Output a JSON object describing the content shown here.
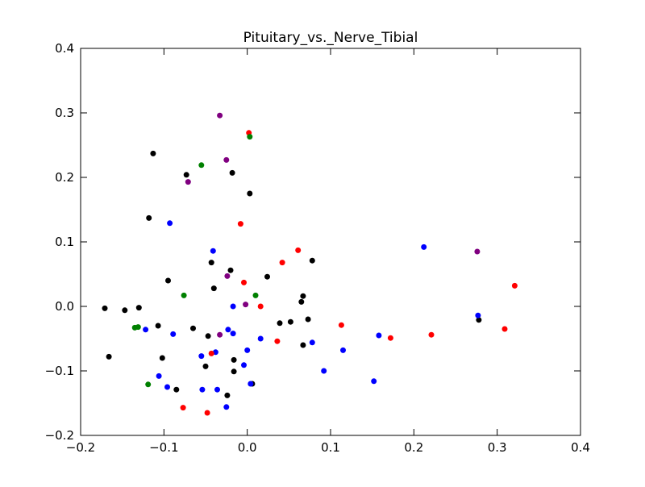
{
  "chart_data": {
    "type": "scatter",
    "title": "Pituitary_vs._Nerve_Tibial",
    "xlabel": "",
    "ylabel": "",
    "xlim": [
      -0.2,
      0.4
    ],
    "ylim": [
      -0.2,
      0.4
    ],
    "xticks": [
      "−0.2",
      "−0.1",
      "0.0",
      "0.1",
      "0.2",
      "0.3",
      "0.4"
    ],
    "xtick_values": [
      -0.2,
      -0.1,
      0.0,
      0.1,
      0.2,
      0.3,
      0.4
    ],
    "yticks": [
      "−0.2",
      "−0.1",
      "0.0",
      "0.1",
      "0.2",
      "0.3",
      "0.4"
    ],
    "ytick_values": [
      -0.2,
      -0.1,
      0.0,
      0.1,
      0.2,
      0.3,
      0.4
    ],
    "grid": false,
    "series": [
      {
        "color": "#000000",
        "x": [
          -0.171,
          -0.166,
          -0.147,
          -0.13,
          -0.118,
          -0.113,
          -0.107,
          -0.102,
          -0.095,
          -0.085,
          -0.073,
          -0.065,
          -0.05,
          -0.047,
          -0.043,
          -0.04,
          -0.024,
          -0.02,
          -0.018,
          -0.016,
          -0.016,
          0.003,
          0.006,
          0.024,
          0.039,
          0.052,
          0.065,
          0.067,
          0.067,
          0.073,
          0.078,
          0.278
        ],
        "y": [
          -0.003,
          -0.078,
          -0.006,
          -0.002,
          0.137,
          0.237,
          -0.03,
          -0.08,
          0.04,
          -0.129,
          0.204,
          -0.034,
          -0.093,
          -0.046,
          0.068,
          0.028,
          -0.138,
          0.056,
          0.207,
          -0.083,
          -0.101,
          0.175,
          -0.12,
          0.046,
          -0.026,
          -0.024,
          0.007,
          0.016,
          -0.06,
          -0.02,
          0.071,
          -0.021
        ]
      },
      {
        "color": "#0000ff",
        "x": [
          -0.122,
          -0.106,
          -0.096,
          -0.093,
          -0.089,
          -0.055,
          -0.054,
          -0.041,
          -0.038,
          -0.036,
          -0.025,
          -0.023,
          -0.017,
          -0.017,
          -0.004,
          0.0,
          0.004,
          0.016,
          0.078,
          0.092,
          0.115,
          0.152,
          0.158,
          0.212,
          0.277
        ],
        "y": [
          -0.036,
          -0.108,
          -0.125,
          0.129,
          -0.043,
          -0.077,
          -0.129,
          0.086,
          -0.071,
          -0.129,
          -0.156,
          -0.036,
          0.0,
          -0.042,
          -0.091,
          -0.068,
          -0.12,
          -0.05,
          -0.056,
          -0.1,
          -0.068,
          -0.116,
          -0.045,
          0.092,
          -0.014
        ]
      },
      {
        "color": "#ff0000",
        "x": [
          -0.077,
          -0.048,
          -0.043,
          -0.008,
          -0.004,
          0.002,
          0.016,
          0.036,
          0.042,
          0.061,
          0.113,
          0.172,
          0.221,
          0.309,
          0.321
        ],
        "y": [
          -0.157,
          -0.165,
          -0.073,
          0.128,
          0.037,
          0.269,
          0.0,
          -0.054,
          0.068,
          0.087,
          -0.029,
          -0.049,
          -0.044,
          -0.035,
          0.032
        ]
      },
      {
        "color": "#008000",
        "x": [
          -0.135,
          -0.131,
          -0.119,
          -0.076,
          -0.055,
          0.003,
          0.01
        ],
        "y": [
          -0.033,
          -0.032,
          -0.121,
          0.017,
          0.219,
          0.263,
          0.017
        ]
      },
      {
        "color": "#800080",
        "x": [
          -0.071,
          -0.033,
          -0.033,
          -0.025,
          -0.024,
          -0.002,
          0.276
        ],
        "y": [
          0.193,
          0.296,
          -0.044,
          0.227,
          0.047,
          0.003,
          0.085
        ]
      }
    ]
  }
}
